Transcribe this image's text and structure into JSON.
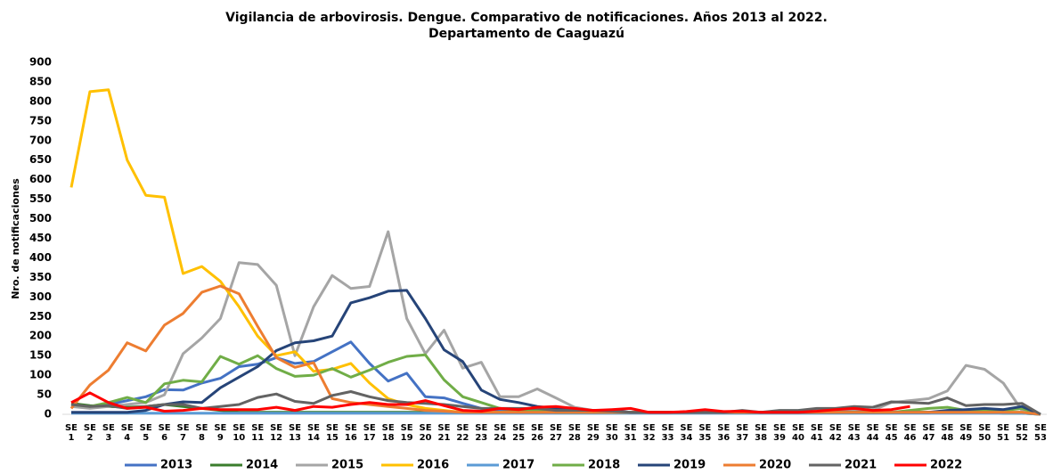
{
  "chart_data": {
    "type": "line",
    "title": "Vigilancia de arbovirosis. Dengue. Comparativo de notificaciones. Años 2013 al 2022.",
    "subtitle": "Departamento de Caaguazú",
    "y_label": "Nro. de notificaciones",
    "categories": [
      "SE 1",
      "SE 2",
      "SE 3",
      "SE 4",
      "SE 5",
      "SE 6",
      "SE 7",
      "SE 8",
      "SE 9",
      "SE 10",
      "SE 11",
      "SE 12",
      "SE 13",
      "SE 14",
      "SE 15",
      "SE 16",
      "SE 17",
      "SE 18",
      "SE 19",
      "SE 20",
      "SE 21",
      "SE 22",
      "SE 23",
      "SE 24",
      "SE 25",
      "SE 26",
      "SE 27",
      "SE 28",
      "SE 29",
      "SE 30",
      "SE 31",
      "SE 32",
      "SE 33",
      "SE 34",
      "SE 35",
      "SE 36",
      "SE 37",
      "SE 38",
      "SE 39",
      "SE 40",
      "SE 41",
      "SE 42",
      "SE 43",
      "SE 44",
      "SE 45",
      "SE 46",
      "SE 47",
      "SE 48",
      "SE 49",
      "SE 50",
      "SE 51",
      "SE 52",
      "SE 53"
    ],
    "ylim": [
      0,
      900
    ],
    "yticks": [
      0,
      50,
      100,
      150,
      200,
      250,
      300,
      350,
      400,
      450,
      500,
      550,
      600,
      650,
      700,
      750,
      800,
      850,
      900
    ],
    "legend": "bottom",
    "series": [
      {
        "name": "2013",
        "color": "#4472c4",
        "values": [
          25,
          20,
          25,
          35,
          45,
          63,
          62,
          80,
          92,
          122,
          128,
          145,
          130,
          135,
          160,
          185,
          130,
          85,
          105,
          45,
          42,
          28,
          15,
          10,
          10,
          10,
          5,
          5,
          5,
          5,
          5,
          5,
          5,
          5,
          5,
          5,
          5,
          5,
          5,
          5,
          5,
          5,
          5,
          5,
          5,
          5,
          5,
          5,
          5,
          5,
          5,
          5,
          0
        ]
      },
      {
        "name": "2014",
        "color": "#3a7d2c",
        "values": [
          28,
          22,
          20,
          18,
          20,
          25,
          20,
          15,
          10,
          5,
          5,
          5,
          5,
          5,
          5,
          5,
          5,
          5,
          5,
          5,
          5,
          5,
          5,
          5,
          5,
          5,
          5,
          5,
          5,
          5,
          5,
          5,
          5,
          5,
          5,
          5,
          5,
          5,
          5,
          5,
          5,
          5,
          5,
          5,
          5,
          5,
          5,
          5,
          5,
          5,
          3,
          3,
          0
        ]
      },
      {
        "name": "2015",
        "color": "#a5a5a5",
        "values": [
          20,
          15,
          20,
          25,
          30,
          50,
          155,
          195,
          245,
          388,
          383,
          330,
          150,
          275,
          355,
          322,
          327,
          467,
          245,
          155,
          215,
          118,
          133,
          45,
          45,
          65,
          42,
          18,
          10,
          5,
          5,
          5,
          5,
          5,
          5,
          5,
          5,
          5,
          5,
          5,
          10,
          10,
          10,
          10,
          30,
          35,
          40,
          60,
          125,
          115,
          80,
          10,
          0
        ]
      },
      {
        "name": "2016",
        "color": "#ffc000",
        "values": [
          580,
          825,
          830,
          650,
          560,
          555,
          360,
          378,
          340,
          275,
          200,
          150,
          160,
          110,
          115,
          130,
          80,
          40,
          25,
          15,
          10,
          5,
          5,
          5,
          5,
          5,
          5,
          5,
          5,
          5,
          5,
          5,
          5,
          5,
          5,
          5,
          5,
          5,
          5,
          5,
          5,
          5,
          5,
          5,
          5,
          5,
          5,
          5,
          5,
          5,
          5,
          5,
          0
        ]
      },
      {
        "name": "2017",
        "color": "#5b9bd5",
        "values": [
          3,
          3,
          3,
          3,
          3,
          3,
          3,
          3,
          3,
          3,
          3,
          3,
          3,
          3,
          3,
          3,
          3,
          3,
          3,
          3,
          3,
          3,
          3,
          3,
          3,
          3,
          3,
          3,
          3,
          3,
          3,
          3,
          3,
          3,
          3,
          3,
          3,
          3,
          3,
          3,
          3,
          3,
          3,
          3,
          3,
          3,
          3,
          3,
          3,
          3,
          3,
          3,
          0
        ]
      },
      {
        "name": "2018",
        "color": "#70ad47",
        "values": [
          25,
          20,
          30,
          43,
          30,
          78,
          87,
          83,
          148,
          128,
          150,
          117,
          97,
          100,
          117,
          95,
          113,
          133,
          148,
          152,
          88,
          45,
          30,
          15,
          10,
          10,
          5,
          5,
          5,
          5,
          5,
          5,
          5,
          5,
          5,
          5,
          5,
          5,
          5,
          5,
          5,
          5,
          5,
          5,
          5,
          10,
          15,
          18,
          10,
          10,
          10,
          15,
          0
        ]
      },
      {
        "name": "2019",
        "color": "#264478",
        "values": [
          5,
          5,
          5,
          5,
          10,
          25,
          32,
          30,
          68,
          95,
          122,
          163,
          183,
          188,
          200,
          285,
          298,
          315,
          317,
          245,
          165,
          135,
          62,
          38,
          30,
          20,
          15,
          10,
          10,
          10,
          5,
          5,
          5,
          5,
          5,
          5,
          5,
          5,
          5,
          5,
          5,
          5,
          5,
          5,
          5,
          5,
          5,
          10,
          12,
          15,
          12,
          20,
          0
        ]
      },
      {
        "name": "2020",
        "color": "#ed7d31",
        "values": [
          15,
          75,
          113,
          183,
          162,
          228,
          258,
          312,
          328,
          308,
          225,
          145,
          120,
          132,
          40,
          30,
          25,
          20,
          15,
          10,
          8,
          5,
          5,
          5,
          5,
          5,
          5,
          5,
          5,
          5,
          5,
          5,
          5,
          5,
          5,
          5,
          5,
          5,
          5,
          5,
          5,
          5,
          5,
          5,
          5,
          5,
          5,
          5,
          5,
          5,
          5,
          5,
          0
        ]
      },
      {
        "name": "2021",
        "color": "#636363",
        "values": [
          25,
          20,
          22,
          15,
          20,
          25,
          25,
          15,
          20,
          25,
          43,
          52,
          33,
          28,
          48,
          58,
          45,
          35,
          30,
          28,
          25,
          20,
          15,
          15,
          15,
          15,
          10,
          10,
          10,
          8,
          5,
          5,
          5,
          5,
          5,
          5,
          10,
          5,
          10,
          10,
          15,
          15,
          20,
          18,
          32,
          30,
          28,
          42,
          22,
          25,
          25,
          28,
          0
        ]
      },
      {
        "name": "2022",
        "color": "#ff0000",
        "values": [
          30,
          55,
          30,
          15,
          18,
          8,
          10,
          15,
          12,
          12,
          12,
          18,
          10,
          20,
          18,
          25,
          30,
          25,
          25,
          35,
          22,
          10,
          8,
          15,
          12,
          18,
          20,
          15,
          10,
          12,
          15,
          5,
          5,
          7,
          12,
          7,
          8,
          5,
          5,
          5,
          8,
          12,
          15,
          10,
          12,
          20,
          null,
          null,
          null,
          null,
          null,
          null,
          null
        ]
      }
    ]
  }
}
